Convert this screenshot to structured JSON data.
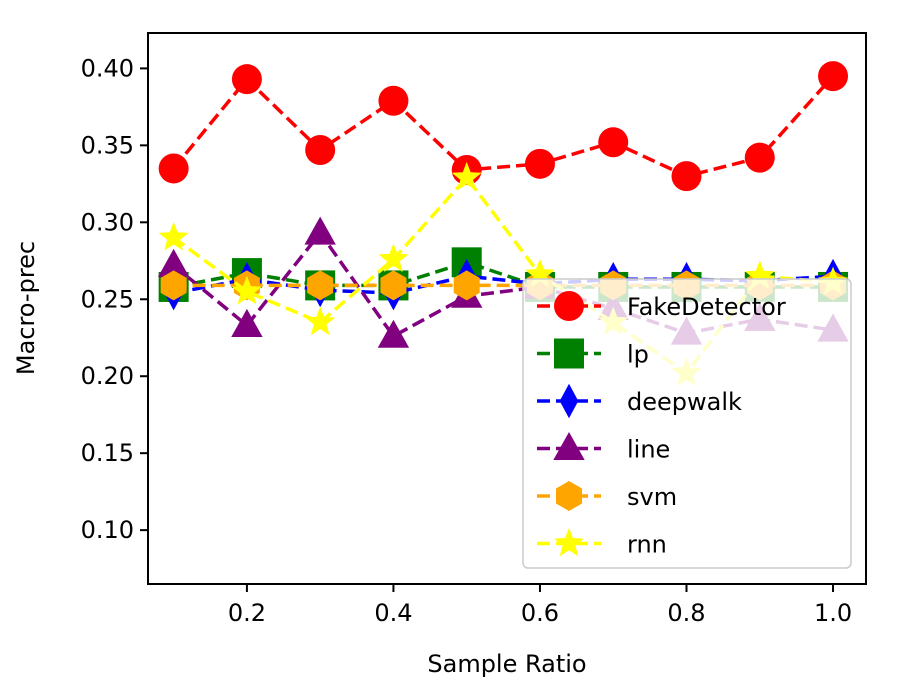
{
  "chart_data": {
    "type": "line",
    "title": "",
    "xlabel": "Sample Ratio",
    "ylabel": "Macro-prec",
    "xlim": [
      0.065,
      1.045
    ],
    "ylim": [
      0.065,
      0.423
    ],
    "xticks": [
      0.2,
      0.4,
      0.6,
      0.8,
      1.0
    ],
    "xtick_labels": [
      "0.2",
      "0.4",
      "0.6",
      "0.8",
      "1.0"
    ],
    "yticks": [
      0.1,
      0.15,
      0.2,
      0.25,
      0.3,
      0.35,
      0.4
    ],
    "ytick_labels": [
      "0.10",
      "0.15",
      "0.20",
      "0.25",
      "0.30",
      "0.35",
      "0.40"
    ],
    "grid": false,
    "legend_position": "lower-right",
    "x": [
      0.1,
      0.2,
      0.3,
      0.4,
      0.5,
      0.6,
      0.7,
      0.8,
      0.9,
      1.0
    ],
    "series": [
      {
        "name": "FakeDetector",
        "color": "#ff0000",
        "marker": "circle",
        "values": [
          0.335,
          0.393,
          0.347,
          0.379,
          0.334,
          0.338,
          0.352,
          0.33,
          0.342,
          0.395
        ]
      },
      {
        "name": "lp",
        "color": "#008000",
        "marker": "square",
        "values": [
          0.258,
          0.267,
          0.259,
          0.259,
          0.274,
          0.258,
          0.258,
          0.258,
          0.258,
          0.258
        ]
      },
      {
        "name": "deepwalk",
        "color": "#0000ff",
        "marker": "diamond",
        "values": [
          0.254,
          0.263,
          0.256,
          0.254,
          0.265,
          0.26,
          0.263,
          0.263,
          0.262,
          0.265
        ]
      },
      {
        "name": "line",
        "color": "#800080",
        "marker": "triangle",
        "values": [
          0.272,
          0.233,
          0.293,
          0.226,
          0.252,
          0.258,
          0.244,
          0.228,
          0.237,
          0.23
        ]
      },
      {
        "name": "svm",
        "color": "#ffa500",
        "marker": "hexagon",
        "values": [
          0.259,
          0.259,
          0.259,
          0.259,
          0.259,
          0.259,
          0.259,
          0.259,
          0.259,
          0.259
        ]
      },
      {
        "name": "rnn",
        "color": "#ffff00",
        "marker": "star",
        "values": [
          0.29,
          0.255,
          0.235,
          0.276,
          0.329,
          0.266,
          0.235,
          0.202,
          0.265,
          0.261
        ]
      }
    ]
  }
}
